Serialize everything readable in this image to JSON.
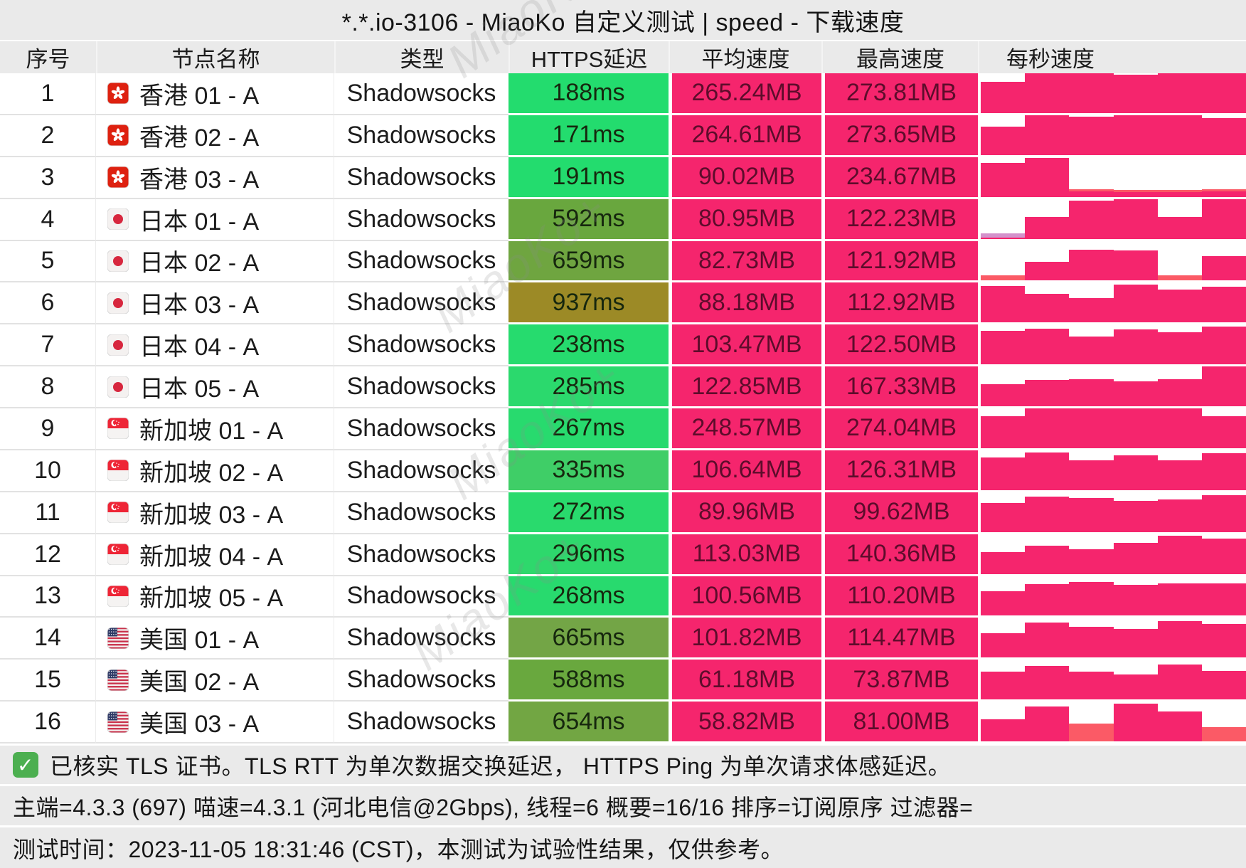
{
  "title": "*.*.io-3106 - MiaoKo 自定义测试 | speed - 下载速度",
  "watermark": {
    "text": "MiaoKo+"
  },
  "table": {
    "headers": [
      "序号",
      "节点名称",
      "类型",
      "HTTPS延迟",
      "平均速度",
      "最高速度",
      "每秒速度"
    ],
    "colors": {
      "pink": "#F5256D",
      "speed_text": "#5D0C2B",
      "salmon": "#FB5A66",
      "purple": "#D492CB",
      "bright_green": "#23DC6E",
      "olive_green": "#6CA740",
      "gold": "#9C8A26"
    },
    "rows": [
      {
        "index": "1",
        "flag": "hk",
        "name": "香港 01 - A",
        "type": "Shadowsocks",
        "latency": "188ms",
        "latency_color": "#23DC6E",
        "avg_speed": "265.24MB",
        "max_speed": "273.81MB",
        "spark": [
          {
            "p": 0.78
          },
          {
            "p": 1
          },
          {
            "p": 1
          },
          {
            "p": 0.96
          },
          {
            "p": 1
          },
          {
            "p": 1
          }
        ]
      },
      {
        "index": "2",
        "flag": "hk",
        "name": "香港 02 - A",
        "type": "Shadowsocks",
        "latency": "171ms",
        "latency_color": "#23DC6E",
        "avg_speed": "264.61MB",
        "max_speed": "273.65MB",
        "spark": [
          {
            "p": 0.72
          },
          {
            "p": 1
          },
          {
            "p": 0.96
          },
          {
            "p": 1
          },
          {
            "p": 1
          },
          {
            "p": 0.93
          }
        ]
      },
      {
        "index": "3",
        "flag": "hk",
        "name": "香港 03 - A",
        "type": "Shadowsocks",
        "latency": "191ms",
        "latency_color": "#23DC6E",
        "avg_speed": "90.02MB",
        "max_speed": "234.67MB",
        "spark": [
          {
            "p": 0.86
          },
          {
            "p": 0.97
          },
          {
            "p": 0.13,
            "s": 0.06
          },
          {
            "p": 0.11,
            "s": 0.06
          },
          {
            "p": 0.11,
            "s": 0.06
          },
          {
            "p": 0.13,
            "s": 0.06
          }
        ]
      },
      {
        "index": "4",
        "flag": "jp",
        "name": "日本 01 - A",
        "type": "Shadowsocks",
        "latency": "592ms",
        "latency_color": "#69A73E",
        "avg_speed": "80.95MB",
        "max_speed": "122.23MB",
        "spark": [
          {
            "p": 0.03,
            "v": 0.11
          },
          {
            "p": 0.55
          },
          {
            "p": 0.95
          },
          {
            "p": 1
          },
          {
            "p": 0.55
          },
          {
            "p": 1
          }
        ]
      },
      {
        "index": "5",
        "flag": "jp",
        "name": "日本 02 - A",
        "type": "Shadowsocks",
        "latency": "659ms",
        "latency_color": "#6FA540",
        "avg_speed": "82.73MB",
        "max_speed": "121.92MB",
        "spark": [
          {
            "p": 0,
            "s": 0.14
          },
          {
            "p": 0.48
          },
          {
            "p": 0.78
          },
          {
            "p": 0.76
          },
          {
            "p": 0,
            "s": 0.14
          },
          {
            "p": 0.62
          }
        ]
      },
      {
        "index": "6",
        "flag": "jp",
        "name": "日本 03 - A",
        "type": "Shadowsocks",
        "latency": "937ms",
        "latency_color": "#9C8A26",
        "avg_speed": "88.18MB",
        "max_speed": "112.92MB",
        "spark": [
          {
            "p": 0.92
          },
          {
            "p": 0.72
          },
          {
            "p": 0.62
          },
          {
            "p": 0.95
          },
          {
            "p": 0.82
          },
          {
            "p": 0.9
          }
        ]
      },
      {
        "index": "7",
        "flag": "jp",
        "name": "日本 04 - A",
        "type": "Shadowsocks",
        "latency": "238ms",
        "latency_color": "#26DB6E",
        "avg_speed": "103.47MB",
        "max_speed": "122.50MB",
        "spark": [
          {
            "p": 0.85
          },
          {
            "p": 0.9
          },
          {
            "p": 0.7
          },
          {
            "p": 0.88
          },
          {
            "p": 0.8
          },
          {
            "p": 0.95
          }
        ]
      },
      {
        "index": "8",
        "flag": "jp",
        "name": "日本 05 - A",
        "type": "Shadowsocks",
        "latency": "285ms",
        "latency_color": "#2BD96D",
        "avg_speed": "122.85MB",
        "max_speed": "167.33MB",
        "spark": [
          {
            "p": 0.55
          },
          {
            "p": 0.66
          },
          {
            "p": 0.68
          },
          {
            "p": 0.62
          },
          {
            "p": 0.68
          },
          {
            "p": 1
          }
        ]
      },
      {
        "index": "9",
        "flag": "sg",
        "name": "新加坡 01 - A",
        "type": "Shadowsocks",
        "latency": "267ms",
        "latency_color": "#28DA6E",
        "avg_speed": "248.57MB",
        "max_speed": "274.04MB",
        "spark": [
          {
            "p": 0.8
          },
          {
            "p": 1
          },
          {
            "p": 1
          },
          {
            "p": 1
          },
          {
            "p": 1
          },
          {
            "p": 0.8
          }
        ]
      },
      {
        "index": "10",
        "flag": "sg",
        "name": "新加坡 02 - A",
        "type": "Shadowsocks",
        "latency": "335ms",
        "latency_color": "#3FCE67",
        "avg_speed": "106.64MB",
        "max_speed": "126.31MB",
        "spark": [
          {
            "p": 0.82
          },
          {
            "p": 0.95
          },
          {
            "p": 0.75
          },
          {
            "p": 0.88
          },
          {
            "p": 0.75
          },
          {
            "p": 0.92
          }
        ]
      },
      {
        "index": "11",
        "flag": "sg",
        "name": "新加坡 03 - A",
        "type": "Shadowsocks",
        "latency": "272ms",
        "latency_color": "#29DA6D",
        "avg_speed": "89.96MB",
        "max_speed": "99.62MB",
        "spark": [
          {
            "p": 0.72
          },
          {
            "p": 0.88
          },
          {
            "p": 0.85
          },
          {
            "p": 0.78
          },
          {
            "p": 0.82
          },
          {
            "p": 0.92
          }
        ]
      },
      {
        "index": "12",
        "flag": "sg",
        "name": "新加坡 04 - A",
        "type": "Shadowsocks",
        "latency": "296ms",
        "latency_color": "#2ED86C",
        "avg_speed": "113.03MB",
        "max_speed": "140.36MB",
        "spark": [
          {
            "p": 0.55
          },
          {
            "p": 0.7
          },
          {
            "p": 0.62
          },
          {
            "p": 0.78
          },
          {
            "p": 0.95
          },
          {
            "p": 0.88
          }
        ]
      },
      {
        "index": "13",
        "flag": "sg",
        "name": "新加坡 05 - A",
        "type": "Shadowsocks",
        "latency": "268ms",
        "latency_color": "#28DA6E",
        "avg_speed": "100.56MB",
        "max_speed": "110.20MB",
        "spark": [
          {
            "p": 0.62
          },
          {
            "p": 0.8
          },
          {
            "p": 0.85
          },
          {
            "p": 0.78
          },
          {
            "p": 0.82
          },
          {
            "p": 0.82
          }
        ]
      },
      {
        "index": "14",
        "flag": "us",
        "name": "美国 01 - A",
        "type": "Shadowsocks",
        "latency": "665ms",
        "latency_color": "#73A546",
        "avg_speed": "101.82MB",
        "max_speed": "114.47MB",
        "spark": [
          {
            "p": 0.62
          },
          {
            "p": 0.88
          },
          {
            "p": 0.78
          },
          {
            "p": 0.72
          },
          {
            "p": 0.92
          },
          {
            "p": 0.85
          }
        ]
      },
      {
        "index": "15",
        "flag": "us",
        "name": "美国 02 - A",
        "type": "Shadowsocks",
        "latency": "588ms",
        "latency_color": "#69A83E",
        "avg_speed": "61.18MB",
        "max_speed": "73.87MB",
        "spark": [
          {
            "p": 0.7
          },
          {
            "p": 0.85
          },
          {
            "p": 0.7
          },
          {
            "p": 0.62
          },
          {
            "p": 0.88
          },
          {
            "p": 0.72
          }
        ]
      },
      {
        "index": "16",
        "flag": "us",
        "name": "美国 03 - A",
        "type": "Shadowsocks",
        "latency": "654ms",
        "latency_color": "#72A643",
        "avg_speed": "58.82MB",
        "max_speed": "81.00MB",
        "spark": [
          {
            "p": 0.55
          },
          {
            "p": 0.88
          },
          {
            "p": 0,
            "s": 0.45
          },
          {
            "p": 0.95
          },
          {
            "p": 0.75
          },
          {
            "p": 0,
            "s": 0.35
          }
        ]
      }
    ]
  },
  "footer": {
    "tls_note": "已核实 TLS 证书。TLS RTT 为单次数据交换延迟， HTTPS Ping 为单次请求体感延迟。",
    "check_icon": "✓",
    "meta": "主端=4.3.3 (697) 喵速=4.3.1 (河北电信@2Gbps), 线程=6 概要=16/16 排序=订阅原序 过滤器=",
    "time": "测试时间：2023-11-05 18:31:46 (CST)，本测试为试验性结果，仅供参考。"
  }
}
